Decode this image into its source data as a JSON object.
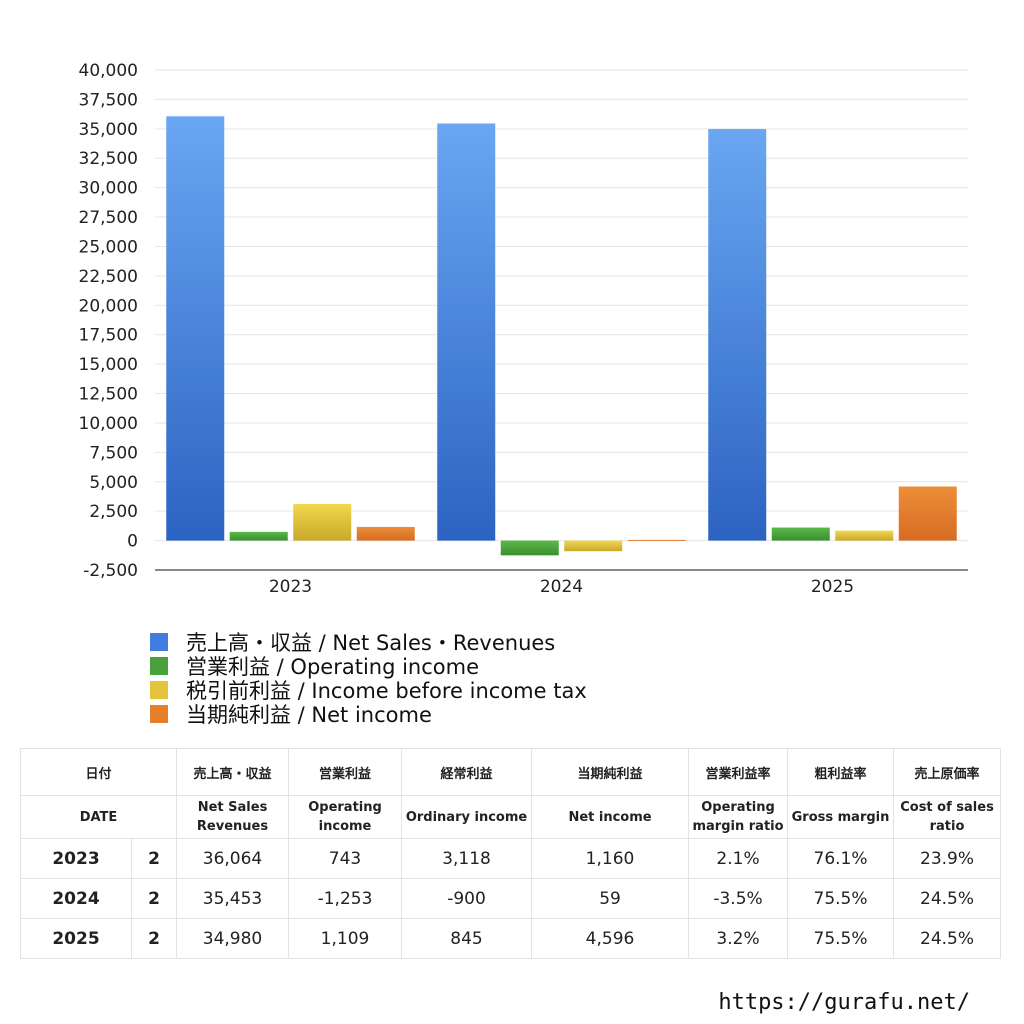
{
  "chart_data": {
    "type": "bar",
    "categories": [
      "2023",
      "2024",
      "2025"
    ],
    "series": [
      {
        "name": "売上高・収益 / Net Sales・Revenues",
        "values": [
          36064,
          35453,
          34980
        ],
        "color": "#3f7ee0"
      },
      {
        "name": "営業利益 / Operating income",
        "values": [
          743,
          -1253,
          1109
        ],
        "color": "#4aa03a"
      },
      {
        "name": "税引前利益 / Income before income tax",
        "values": [
          3118,
          -900,
          845
        ],
        "color": "#e3c43a"
      },
      {
        "name": "当期純利益 / Net income",
        "values": [
          1160,
          59,
          4596
        ],
        "color": "#e67e2a"
      }
    ],
    "ylim": [
      -2500,
      40000
    ],
    "yticks": [
      40000,
      37500,
      35000,
      32500,
      30000,
      27500,
      25000,
      22500,
      20000,
      17500,
      15000,
      12500,
      10000,
      7500,
      5000,
      2500,
      0,
      -2500
    ],
    "ytick_labels": [
      "40,000",
      "37,500",
      "35,000",
      "32,500",
      "30,000",
      "27,500",
      "25,000",
      "22,500",
      "20,000",
      "17,500",
      "15,000",
      "12,500",
      "10,000",
      "7,500",
      "5,000",
      "2,500",
      "0",
      "-2,500"
    ],
    "grid": true,
    "legend_position": "bottom"
  },
  "table": {
    "headers_jp": [
      "日付",
      "売上高・収益",
      "営業利益",
      "経常利益",
      "当期純利益",
      "営業利益率",
      "粗利益率",
      "売上原価率"
    ],
    "headers_en": [
      "DATE",
      "Net Sales\nRevenues",
      "Operating\nincome",
      "Ordinary income",
      "Net income",
      "Operating\nmargin ratio",
      "Gross margin",
      "Cost of sales\nratio"
    ],
    "rows": [
      {
        "year": "2023",
        "count": "2",
        "sales": "36,064",
        "operating": "743",
        "ordinary": "3,118",
        "net": "1,160",
        "op_margin": "2.1%",
        "gross": "76.1%",
        "cost": "23.9%"
      },
      {
        "year": "2024",
        "count": "2",
        "sales": "35,453",
        "operating": "-1,253",
        "ordinary": "-900",
        "net": "59",
        "op_margin": "-3.5%",
        "gross": "75.5%",
        "cost": "24.5%"
      },
      {
        "year": "2025",
        "count": "2",
        "sales": "34,980",
        "operating": "1,109",
        "ordinary": "845",
        "net": "4,596",
        "op_margin": "3.2%",
        "gross": "75.5%",
        "cost": "24.5%"
      }
    ]
  },
  "footer": {
    "url": "https://gurafu.net/"
  }
}
